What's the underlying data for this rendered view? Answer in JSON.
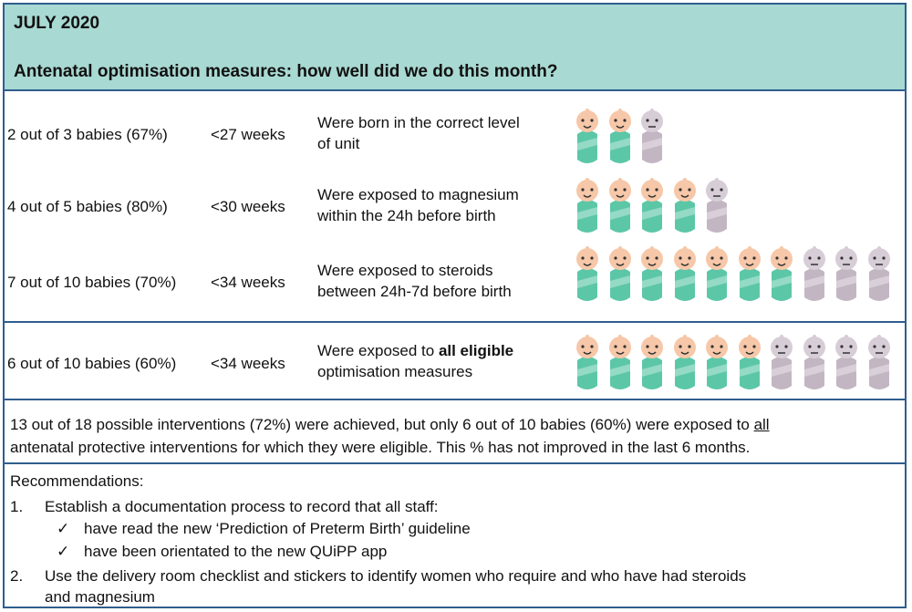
{
  "header": {
    "month": "JULY 2020",
    "title": "Antenatal optimisation measures: how well did we do this month?"
  },
  "rows": [
    {
      "count": "2 out of 3 babies (67%)",
      "gestation": "<27 weeks",
      "desc1": "Were born in the correct level",
      "desc2": "of unit",
      "achieved": 2,
      "total": 3
    },
    {
      "count": "4 out of 5 babies (80%)",
      "gestation": "<30 weeks",
      "desc1": "Were exposed to magnesium",
      "desc2": "within the 24h before birth",
      "achieved": 4,
      "total": 5
    },
    {
      "count": "7 out of 10 babies (70%)",
      "gestation": "<34 weeks",
      "desc1": "Were exposed to steroids",
      "desc2": "between 24h-7d before birth",
      "achieved": 7,
      "total": 10
    },
    {
      "count": "6 out of 10 babies (60%)",
      "gestation": "<34 weeks",
      "desc1_pre": "Were exposed to ",
      "desc1_bold": "all eligible",
      "desc2": "optimisation measures",
      "achieved": 6,
      "total": 10
    }
  ],
  "summary": {
    "part1": "13 out of 18 possible interventions (72%) were achieved, but only 6 out of 10 babies (60%) were exposed to ",
    "underlined": "all",
    "part2": "antenatal protective interventions for which they were eligible. This % has not improved in the last 6 months."
  },
  "recommendations": {
    "heading": "Recommendations:",
    "item1_number": "1.",
    "item1_text": "Establish a documentation process to record that all staff:",
    "sub1_check": "✓",
    "sub1_text": "have read the new ‘Prediction of Preterm Birth’ guideline",
    "sub2_check": "✓",
    "sub2_text": "have been orientated to the new QUiPP app",
    "item2_number": "2.",
    "item2_line1": "Use the delivery room checklist and stickers to identify women who require and who have had steroids",
    "item2_line2": "and magnesium"
  },
  "colors": {
    "header_bg": "#a8d9d2",
    "border": "#2f5e8e",
    "achieved_body": "#5cc7a7",
    "achieved_face": "#f6c7a8",
    "not_achieved_body": "#c3b6c3",
    "not_achieved_face": "#d7cdd7"
  }
}
